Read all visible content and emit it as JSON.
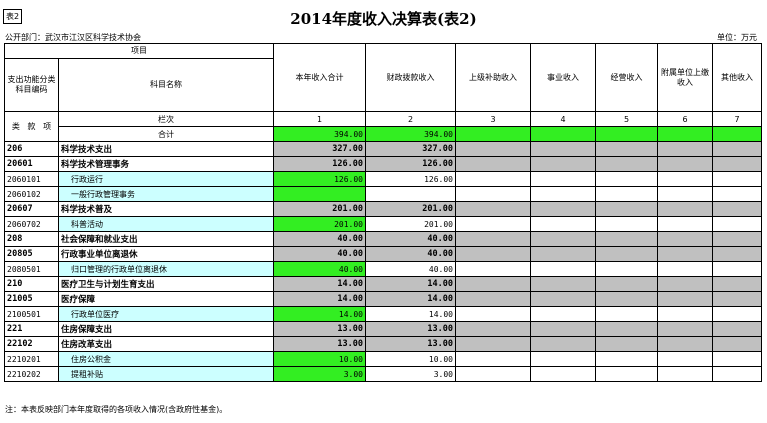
{
  "sheet_tag": "表2",
  "title": "2014年度收入决算表(表2)",
  "department": "公开部门：武汉市江汉区科学技术协会",
  "unit": "单位：万元",
  "header": {
    "item": "项目",
    "func_class": "支出功能分类科目编码",
    "subject_name": "科目名称",
    "cols": [
      "本年收入合计",
      "财政拨款收入",
      "上级补助收入",
      "事业收入",
      "经营收入",
      "附属单位上缴收入",
      "其他收入"
    ],
    "lanci": "栏次",
    "col_nums": [
      "1",
      "2",
      "3",
      "4",
      "5",
      "6",
      "7"
    ],
    "lei": "类",
    "kuan": "款",
    "xiang": "项"
  },
  "total": {
    "label": "合计",
    "v1": "394.00",
    "v2": "394.00"
  },
  "rows": [
    {
      "code": "206",
      "name": "科学技术支出",
      "v1": "327.00",
      "v2": "327.00"
    },
    {
      "code": "20601",
      "name": "科学技术管理事务",
      "v1": "126.00",
      "v2": "126.00"
    },
    {
      "code": "2060101",
      "name": "行政运行",
      "v1": "126.00",
      "v2": "126.00"
    },
    {
      "code": "2060102",
      "name": "一般行政管理事务",
      "v1": "",
      "v2": ""
    },
    {
      "code": "20607",
      "name": "科学技术普及",
      "v1": "201.00",
      "v2": "201.00"
    },
    {
      "code": "2060702",
      "name": "科普活动",
      "v1": "201.00",
      "v2": "201.00"
    },
    {
      "code": "208",
      "name": "社会保障和就业支出",
      "v1": "40.00",
      "v2": "40.00"
    },
    {
      "code": "20805",
      "name": "行政事业单位离退休",
      "v1": "40.00",
      "v2": "40.00"
    },
    {
      "code": "2080501",
      "name": "归口管理的行政单位离退休",
      "v1": "40.00",
      "v2": "40.00"
    },
    {
      "code": "210",
      "name": "医疗卫生与计划生育支出",
      "v1": "14.00",
      "v2": "14.00"
    },
    {
      "code": "21005",
      "name": "医疗保障",
      "v1": "14.00",
      "v2": "14.00"
    },
    {
      "code": "2100501",
      "name": "行政单位医疗",
      "v1": "14.00",
      "v2": "14.00"
    },
    {
      "code": "221",
      "name": "住房保障支出",
      "v1": "13.00",
      "v2": "13.00"
    },
    {
      "code": "22102",
      "name": "住房改革支出",
      "v1": "13.00",
      "v2": "13.00"
    },
    {
      "code": "2210201",
      "name": "住房公积金",
      "v1": "10.00",
      "v2": "10.00"
    },
    {
      "code": "2210202",
      "name": "提租补贴",
      "v1": "3.00",
      "v2": "3.00"
    }
  ],
  "note": "注：本表反映部门本年度取得的各项收入情况(含政府性基金)。",
  "colors": {
    "green": "#33ee22",
    "light_blue": "#ccffff",
    "gray": "#c0c0c0"
  }
}
